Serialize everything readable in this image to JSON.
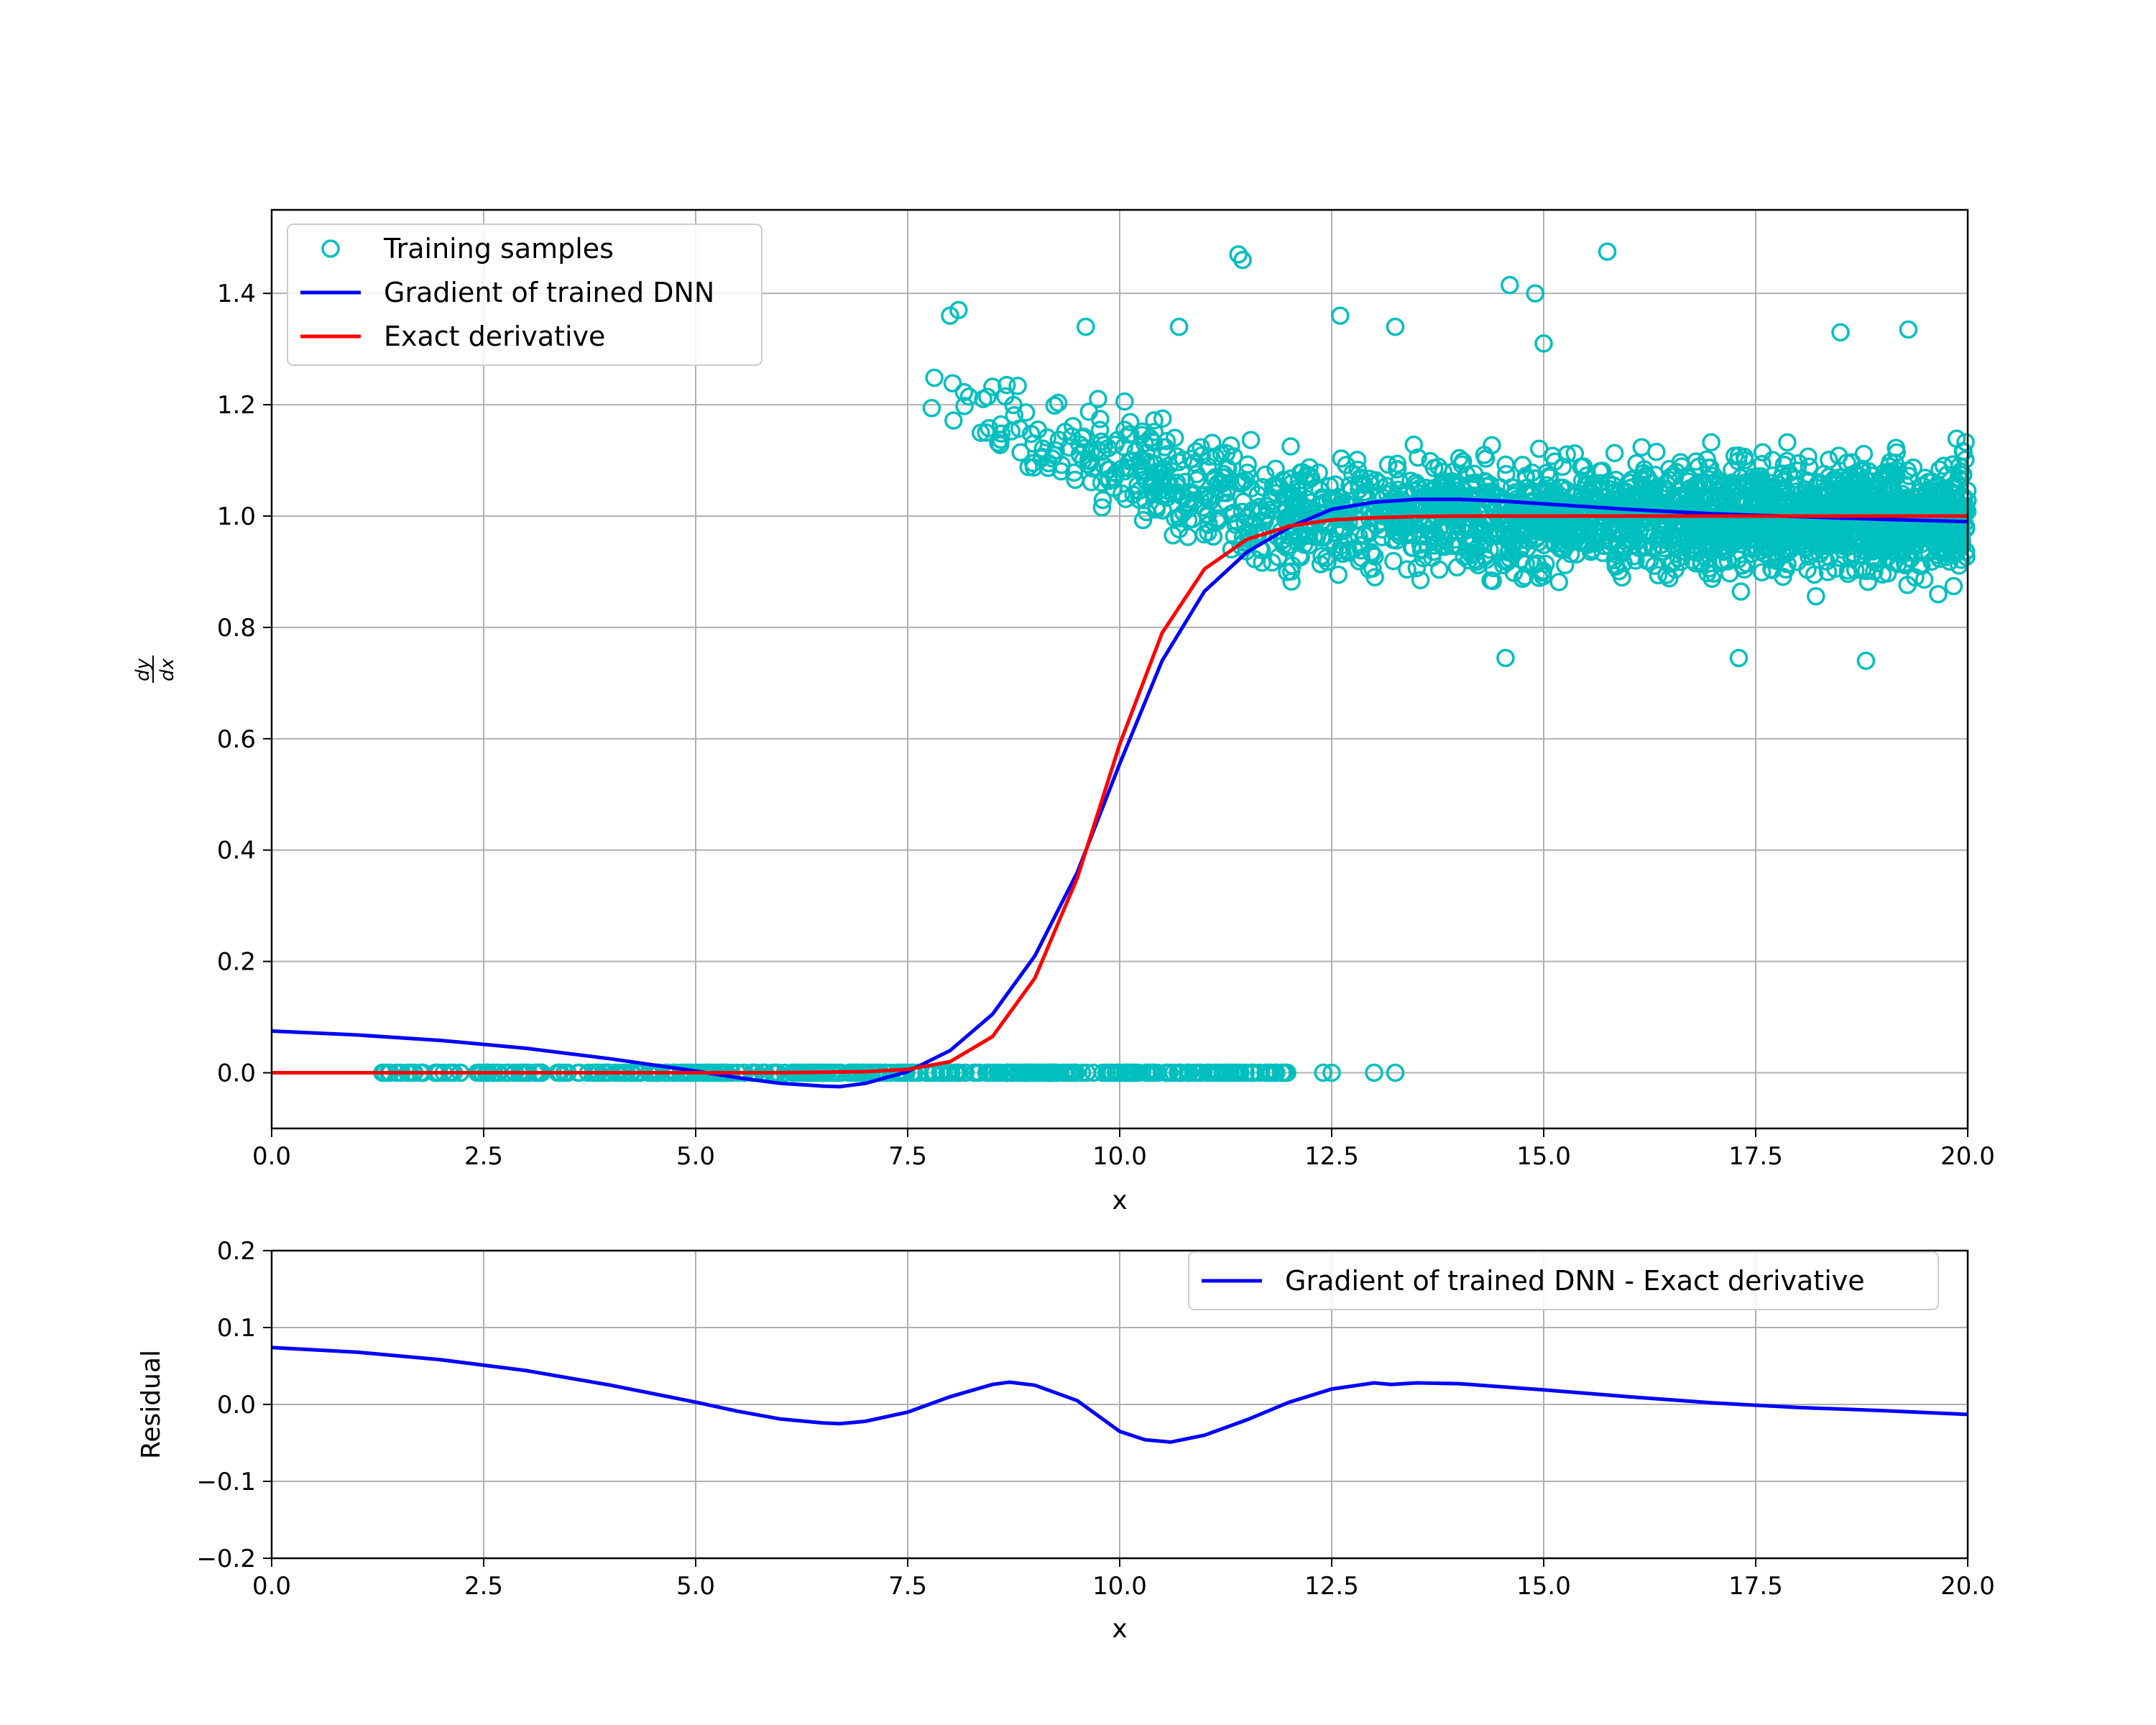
{
  "figure": {
    "colors": {
      "training_samples": "#00bfbf",
      "dnn_gradient": "#0000ff",
      "exact_derivative": "#ff0000",
      "grid": "#b0b0b0",
      "axes": "#000000"
    }
  },
  "chart_data": [
    {
      "type": "scatter+line",
      "title": "",
      "xlabel": "x",
      "ylabel": "dy/dx",
      "xlim": [
        0,
        20
      ],
      "ylim": [
        -0.1,
        1.55
      ],
      "xticks": [
        0,
        2.5,
        5,
        7.5,
        10,
        12.5,
        15,
        17.5,
        20
      ],
      "xtick_labels": [
        "0.0",
        "2.5",
        "5.0",
        "7.5",
        "10.0",
        "12.5",
        "15.0",
        "17.5",
        "20.0"
      ],
      "yticks": [
        0,
        0.2,
        0.4,
        0.6,
        0.8,
        1.0,
        1.2,
        1.4
      ],
      "ytick_labels": [
        "0.0",
        "0.2",
        "0.4",
        "0.6",
        "0.8",
        "1.0",
        "1.2",
        "1.4"
      ],
      "grid": true,
      "legend_position": "upper-left",
      "legend": [
        "Training samples",
        "Gradient of trained DNN",
        "Exact derivative"
      ],
      "scatter": {
        "name": "Training samples",
        "marker": "open-circle",
        "zero_band": {
          "x_min": 1.2,
          "x_max": 12.0,
          "y": 0.0,
          "extra_x": [
            12.4,
            12.5,
            13.0,
            13.25
          ]
        },
        "cloud": {
          "x_min": 7.7,
          "x_max": 20.0,
          "y_center": 1.0,
          "y_spread_at_8": 0.23,
          "y_spread_at_20": 0.18
        },
        "outliers": [
          {
            "x": 11.4,
            "y": 1.47
          },
          {
            "x": 11.45,
            "y": 1.46
          },
          {
            "x": 15.75,
            "y": 1.475
          },
          {
            "x": 14.6,
            "y": 1.415
          },
          {
            "x": 14.9,
            "y": 1.4
          },
          {
            "x": 18.5,
            "y": 1.33
          },
          {
            "x": 19.3,
            "y": 1.335
          },
          {
            "x": 8.1,
            "y": 1.37
          },
          {
            "x": 8.0,
            "y": 1.36
          },
          {
            "x": 9.6,
            "y": 1.34
          },
          {
            "x": 10.7,
            "y": 1.34
          },
          {
            "x": 13.25,
            "y": 1.34
          },
          {
            "x": 14.55,
            "y": 0.745
          },
          {
            "x": 17.3,
            "y": 0.745
          },
          {
            "x": 18.8,
            "y": 0.74
          },
          {
            "x": 15.0,
            "y": 1.31
          },
          {
            "x": 12.6,
            "y": 1.36
          }
        ]
      },
      "series": [
        {
          "name": "Gradient of trained DNN",
          "x": [
            0,
            1,
            2,
            3,
            4,
            5,
            5.5,
            6,
            6.5,
            6.7,
            7,
            7.5,
            8,
            8.5,
            9,
            9.5,
            10,
            10.5,
            11,
            11.5,
            12,
            12.5,
            13,
            13.5,
            14,
            14.5,
            15,
            16,
            17,
            18,
            19,
            20
          ],
          "y": [
            0.075,
            0.068,
            0.058,
            0.044,
            0.025,
            0.003,
            -0.009,
            -0.019,
            -0.024,
            -0.025,
            -0.019,
            0.002,
            0.04,
            0.105,
            0.21,
            0.36,
            0.555,
            0.74,
            0.865,
            0.935,
            0.98,
            1.012,
            1.025,
            1.03,
            1.03,
            1.027,
            1.022,
            1.012,
            1.004,
            0.999,
            0.994,
            0.99
          ]
        },
        {
          "name": "Exact derivative",
          "x": [
            0,
            1,
            2,
            3,
            4,
            5,
            6,
            6.5,
            7,
            7.5,
            8,
            8.5,
            9,
            9.5,
            10,
            10.5,
            11,
            11.5,
            12,
            12.5,
            13,
            13.5,
            14,
            15,
            16,
            17,
            18,
            19,
            20
          ],
          "y": [
            0,
            0,
            0,
            0,
            0,
            0,
            0,
            0.001,
            0.002,
            0.006,
            0.02,
            0.065,
            0.17,
            0.35,
            0.59,
            0.79,
            0.905,
            0.958,
            0.982,
            0.993,
            0.997,
            0.999,
            1.0,
            1.0,
            1.0,
            1.0,
            1.0,
            1.0,
            1.0
          ]
        }
      ]
    },
    {
      "type": "line",
      "title": "",
      "xlabel": "x",
      "ylabel": "Residual",
      "xlim": [
        0,
        20
      ],
      "ylim": [
        -0.2,
        0.2
      ],
      "xticks": [
        0,
        2.5,
        5,
        7.5,
        10,
        12.5,
        15,
        17.5,
        20
      ],
      "xtick_labels": [
        "0.0",
        "2.5",
        "5.0",
        "7.5",
        "10.0",
        "12.5",
        "15.0",
        "17.5",
        "20.0"
      ],
      "yticks": [
        -0.2,
        -0.1,
        0.0,
        0.1,
        0.2
      ],
      "ytick_labels": [
        "−0.2",
        "−0.1",
        "0.0",
        "0.1",
        "0.2"
      ],
      "grid": true,
      "legend_position": "upper-right",
      "legend": [
        "Gradient of trained DNN - Exact derivative"
      ],
      "series": [
        {
          "name": "Gradient of trained DNN - Exact derivative",
          "x": [
            0,
            1,
            2,
            3,
            4,
            5,
            5.5,
            6,
            6.5,
            6.7,
            7,
            7.5,
            8,
            8.5,
            8.7,
            9,
            9.5,
            10,
            10.3,
            10.6,
            11,
            11.5,
            12,
            12.5,
            13,
            13.2,
            13.5,
            14,
            15,
            16,
            17,
            18,
            19,
            20
          ],
          "y": [
            0.074,
            0.068,
            0.058,
            0.044,
            0.025,
            0.003,
            -0.009,
            -0.019,
            -0.024,
            -0.025,
            -0.022,
            -0.01,
            0.01,
            0.026,
            0.029,
            0.025,
            0.005,
            -0.035,
            -0.046,
            -0.049,
            -0.04,
            -0.02,
            0.003,
            0.02,
            0.028,
            0.026,
            0.028,
            0.027,
            0.019,
            0.01,
            0.002,
            -0.004,
            -0.008,
            -0.013
          ]
        }
      ]
    }
  ]
}
